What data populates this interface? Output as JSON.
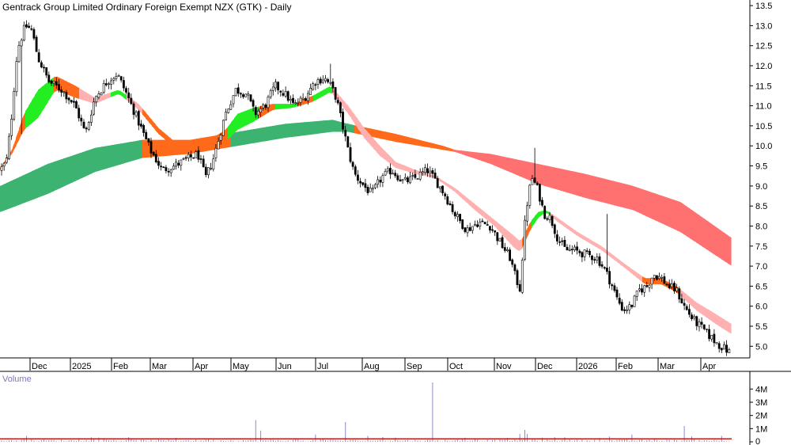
{
  "chart_data": {
    "type": "candlestick",
    "title": "Gentrack Group Limited Ordinary Foreign Exempt NZX (GTK) - Daily",
    "price_axis": {
      "ylim": [
        4.75,
        13.6
      ],
      "ticks": [
        "13.5",
        "13.0",
        "12.5",
        "12.0",
        "11.5",
        "11.0",
        "10.5",
        "10.0",
        "9.5",
        "9.0",
        "8.5",
        "8.0",
        "7.5",
        "7.0",
        "6.5",
        "6.0",
        "5.5",
        "5.0"
      ]
    },
    "x_axis": {
      "ticks": [
        "Dec",
        "2025",
        "Feb",
        "Mar",
        "Apr",
        "May",
        "Jun",
        "Jul",
        "Aug",
        "Sep",
        "Oct",
        "Nov",
        "Dec",
        "2026",
        "Feb",
        "Mar",
        "Apr"
      ]
    },
    "volume_panel": {
      "label": "Volume",
      "ylim": [
        0,
        4500000
      ],
      "ticks": [
        "4M",
        "3M",
        "2M",
        "1M",
        "0"
      ]
    },
    "colors": {
      "up_candle": "#ffffff",
      "down_candle": "#000000",
      "bull_long_ribbon": "#3cb371",
      "bull_short_ribbon": "#22ee22",
      "bear_long_ribbon": "#ff7070",
      "bear_short_ribbon": "#ffb0b0",
      "transition_ribbon": "#ff6a1a",
      "volume_bar": "#8c8cc8",
      "volume_average": "#cc0000"
    },
    "price_keypoints": [
      [
        0,
        9.4
      ],
      [
        8,
        9.6
      ],
      [
        14,
        10.6
      ],
      [
        22,
        12.4
      ],
      [
        32,
        13.0
      ],
      [
        40,
        12.9
      ],
      [
        48,
        12.2
      ],
      [
        62,
        11.6
      ],
      [
        78,
        11.4
      ],
      [
        95,
        11.0
      ],
      [
        108,
        10.3
      ],
      [
        120,
        11.2
      ],
      [
        135,
        11.6
      ],
      [
        148,
        11.8
      ],
      [
        160,
        11.3
      ],
      [
        175,
        10.6
      ],
      [
        190,
        9.9
      ],
      [
        205,
        9.4
      ],
      [
        220,
        9.5
      ],
      [
        240,
        9.7
      ],
      [
        250,
        9.8
      ],
      [
        260,
        9.2
      ],
      [
        270,
        9.7
      ],
      [
        285,
        10.8
      ],
      [
        298,
        11.4
      ],
      [
        312,
        11.3
      ],
      [
        322,
        10.8
      ],
      [
        335,
        11.0
      ],
      [
        348,
        11.5
      ],
      [
        360,
        11.3
      ],
      [
        372,
        11.0
      ],
      [
        385,
        11.2
      ],
      [
        398,
        11.6
      ],
      [
        410,
        11.7
      ],
      [
        418,
        11.5
      ],
      [
        425,
        11.2
      ],
      [
        432,
        10.6
      ],
      [
        440,
        9.9
      ],
      [
        448,
        9.3
      ],
      [
        460,
        9.0
      ],
      [
        470,
        8.8
      ],
      [
        482,
        9.2
      ],
      [
        495,
        9.4
      ],
      [
        510,
        9.1
      ],
      [
        525,
        9.2
      ],
      [
        540,
        9.4
      ],
      [
        552,
        9.1
      ],
      [
        562,
        8.8
      ],
      [
        575,
        8.3
      ],
      [
        590,
        7.9
      ],
      [
        605,
        8.1
      ],
      [
        620,
        8.0
      ],
      [
        632,
        7.6
      ],
      [
        645,
        7.2
      ],
      [
        652,
        6.7
      ],
      [
        658,
        6.4
      ],
      [
        662,
        7.8
      ],
      [
        668,
        8.8
      ],
      [
        673,
        9.2
      ],
      [
        680,
        8.9
      ],
      [
        688,
        8.3
      ],
      [
        696,
        8.2
      ],
      [
        705,
        7.7
      ],
      [
        715,
        7.4
      ],
      [
        725,
        7.4
      ],
      [
        740,
        7.3
      ],
      [
        755,
        7.2
      ],
      [
        765,
        6.9
      ],
      [
        772,
        6.6
      ],
      [
        780,
        6.2
      ],
      [
        788,
        5.9
      ],
      [
        798,
        6.0
      ],
      [
        808,
        6.4
      ],
      [
        818,
        6.5
      ],
      [
        826,
        6.8
      ],
      [
        836,
        6.7
      ],
      [
        845,
        6.5
      ],
      [
        855,
        6.4
      ],
      [
        865,
        6.0
      ],
      [
        875,
        5.7
      ],
      [
        885,
        5.5
      ],
      [
        895,
        5.3
      ],
      [
        905,
        5.1
      ],
      [
        915,
        4.95
      ],
      [
        923,
        4.85
      ]
    ],
    "long_ribbon_keypoints": [
      [
        0,
        8.35,
        9.0
      ],
      [
        60,
        8.8,
        9.55
      ],
      [
        120,
        9.35,
        9.95
      ],
      [
        180,
        9.7,
        10.15
      ],
      [
        240,
        9.8,
        10.15
      ],
      [
        300,
        10.0,
        10.35
      ],
      [
        360,
        10.2,
        10.55
      ],
      [
        420,
        10.35,
        10.65
      ],
      [
        440,
        10.35,
        10.55
      ],
      [
        500,
        10.1,
        10.3
      ],
      [
        560,
        9.9,
        10.0
      ],
      [
        575,
        9.85,
        9.9
      ],
      [
        620,
        9.55,
        9.8
      ],
      [
        680,
        9.05,
        9.55
      ],
      [
        740,
        8.7,
        9.3
      ],
      [
        800,
        8.4,
        9.0
      ],
      [
        860,
        7.85,
        8.6
      ],
      [
        925,
        7.0,
        7.7
      ]
    ],
    "short_ribbon_keypoints": [
      [
        0,
        9.4,
        9.45
      ],
      [
        15,
        9.8,
        9.9
      ],
      [
        30,
        10.4,
        10.8
      ],
      [
        48,
        10.7,
        11.4
      ],
      [
        70,
        11.4,
        11.75
      ],
      [
        95,
        11.2,
        11.5
      ],
      [
        120,
        11.05,
        11.2
      ],
      [
        150,
        11.3,
        11.4
      ],
      [
        175,
        10.9,
        11.05
      ],
      [
        200,
        10.3,
        10.45
      ],
      [
        230,
        9.8,
        9.95
      ],
      [
        260,
        9.95,
        10.1
      ],
      [
        285,
        10.1,
        10.4
      ],
      [
        300,
        10.4,
        10.8
      ],
      [
        320,
        10.6,
        10.95
      ],
      [
        345,
        10.9,
        11.05
      ],
      [
        370,
        10.95,
        11.05
      ],
      [
        395,
        11.1,
        11.25
      ],
      [
        418,
        11.35,
        11.5
      ],
      [
        440,
        10.8,
        11.0
      ],
      [
        460,
        10.2,
        10.45
      ],
      [
        480,
        9.75,
        10.0
      ],
      [
        500,
        9.45,
        9.6
      ],
      [
        525,
        9.3,
        9.4
      ],
      [
        550,
        9.2,
        9.25
      ],
      [
        575,
        8.85,
        8.95
      ],
      [
        600,
        8.4,
        8.55
      ],
      [
        625,
        8.0,
        8.15
      ],
      [
        650,
        7.45,
        7.75
      ],
      [
        658,
        7.35,
        7.6
      ],
      [
        670,
        7.9,
        8.1
      ],
      [
        680,
        8.2,
        8.35
      ],
      [
        690,
        8.35,
        8.4
      ],
      [
        705,
        8.1,
        8.2
      ],
      [
        730,
        7.75,
        7.85
      ],
      [
        760,
        7.4,
        7.5
      ],
      [
        790,
        6.95,
        7.05
      ],
      [
        815,
        6.55,
        6.7
      ],
      [
        835,
        6.55,
        6.7
      ],
      [
        855,
        6.35,
        6.5
      ],
      [
        880,
        5.9,
        6.1
      ],
      [
        905,
        5.55,
        5.8
      ],
      [
        925,
        5.3,
        5.55
      ]
    ],
    "volume_keypoints": [
      [
        35,
        450000
      ],
      [
        100,
        280000
      ],
      [
        165,
        250000
      ],
      [
        222,
        300000
      ],
      [
        265,
        260000
      ],
      [
        322,
        1650000
      ],
      [
        330,
        850000
      ],
      [
        400,
        550000
      ],
      [
        437,
        1500000
      ],
      [
        465,
        450000
      ],
      [
        500,
        320000
      ],
      [
        546,
        4500000
      ],
      [
        600,
        260000
      ],
      [
        640,
        300000
      ],
      [
        656,
        600000
      ],
      [
        662,
        900000
      ],
      [
        668,
        600000
      ],
      [
        700,
        350000
      ],
      [
        770,
        400000
      ],
      [
        800,
        550000
      ],
      [
        866,
        1200000
      ],
      [
        912,
        450000
      ]
    ],
    "volume_average": 230000
  }
}
